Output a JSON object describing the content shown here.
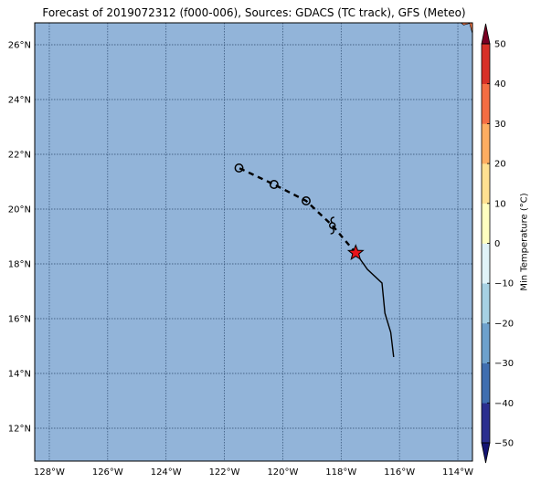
{
  "title": "Forecast of 2019072312 (f000-006), Sources: GDACS (TC track), GFS (Meteo)",
  "map": {
    "lon_range": [
      -128.5,
      -113.5
    ],
    "lat_range": [
      10.8,
      26.8
    ],
    "ocean_color": "#92b4d9",
    "land_color": "#f4794a",
    "grid_color": "#2d4a6e",
    "lon_ticks": [
      {
        "value": -128,
        "label": "128°W"
      },
      {
        "value": -126,
        "label": "126°W"
      },
      {
        "value": -124,
        "label": "124°W"
      },
      {
        "value": -122,
        "label": "122°W"
      },
      {
        "value": -120,
        "label": "120°W"
      },
      {
        "value": -118,
        "label": "118°W"
      },
      {
        "value": -116,
        "label": "116°W"
      },
      {
        "value": -114,
        "label": "114°W"
      }
    ],
    "lat_ticks": [
      {
        "value": 12,
        "label": "12°N"
      },
      {
        "value": 14,
        "label": "14°N"
      },
      {
        "value": 16,
        "label": "16°N"
      },
      {
        "value": 18,
        "label": "18°N"
      },
      {
        "value": 20,
        "label": "20°N"
      },
      {
        "value": 22,
        "label": "22°N"
      },
      {
        "value": 24,
        "label": "24°N"
      },
      {
        "value": 26,
        "label": "26°N"
      }
    ],
    "past_track": [
      [
        -116.2,
        14.6
      ],
      [
        -116.3,
        15.5
      ],
      [
        -116.5,
        16.2
      ],
      [
        -116.6,
        17.3
      ],
      [
        -117.1,
        17.8
      ],
      [
        -117.5,
        18.4
      ]
    ],
    "forecast_track": [
      [
        -117.5,
        18.4
      ],
      [
        -118.3,
        19.4
      ],
      [
        -119.2,
        20.3
      ],
      [
        -120.3,
        20.9
      ],
      [
        -121.5,
        21.5
      ]
    ],
    "current_position": {
      "lon": -117.5,
      "lat": 18.4
    },
    "cyclone_symbol": {
      "lon": -118.3,
      "lat": 19.4
    },
    "forecast_points": [
      [
        -119.2,
        20.3
      ],
      [
        -120.3,
        20.9
      ],
      [
        -121.5,
        21.5
      ]
    ]
  },
  "colorbar": {
    "label": "Min Temperature (°C)",
    "levels": [
      -50,
      -40,
      -30,
      -20,
      -10,
      0,
      10,
      20,
      30,
      40,
      50
    ],
    "tick_labels": [
      "−50",
      "−40",
      "−30",
      "−20",
      "−10",
      "0",
      "10",
      "20",
      "30",
      "40",
      "50"
    ],
    "colors": [
      "#2a2e8f",
      "#3f6eb0",
      "#6da1cc",
      "#a6d1e3",
      "#e0f3f8",
      "#ffffc0",
      "#fee091",
      "#fdad61",
      "#f46d43",
      "#d73027",
      "#a50026"
    ],
    "under_color": "#141472",
    "over_color": "#7a0023"
  }
}
